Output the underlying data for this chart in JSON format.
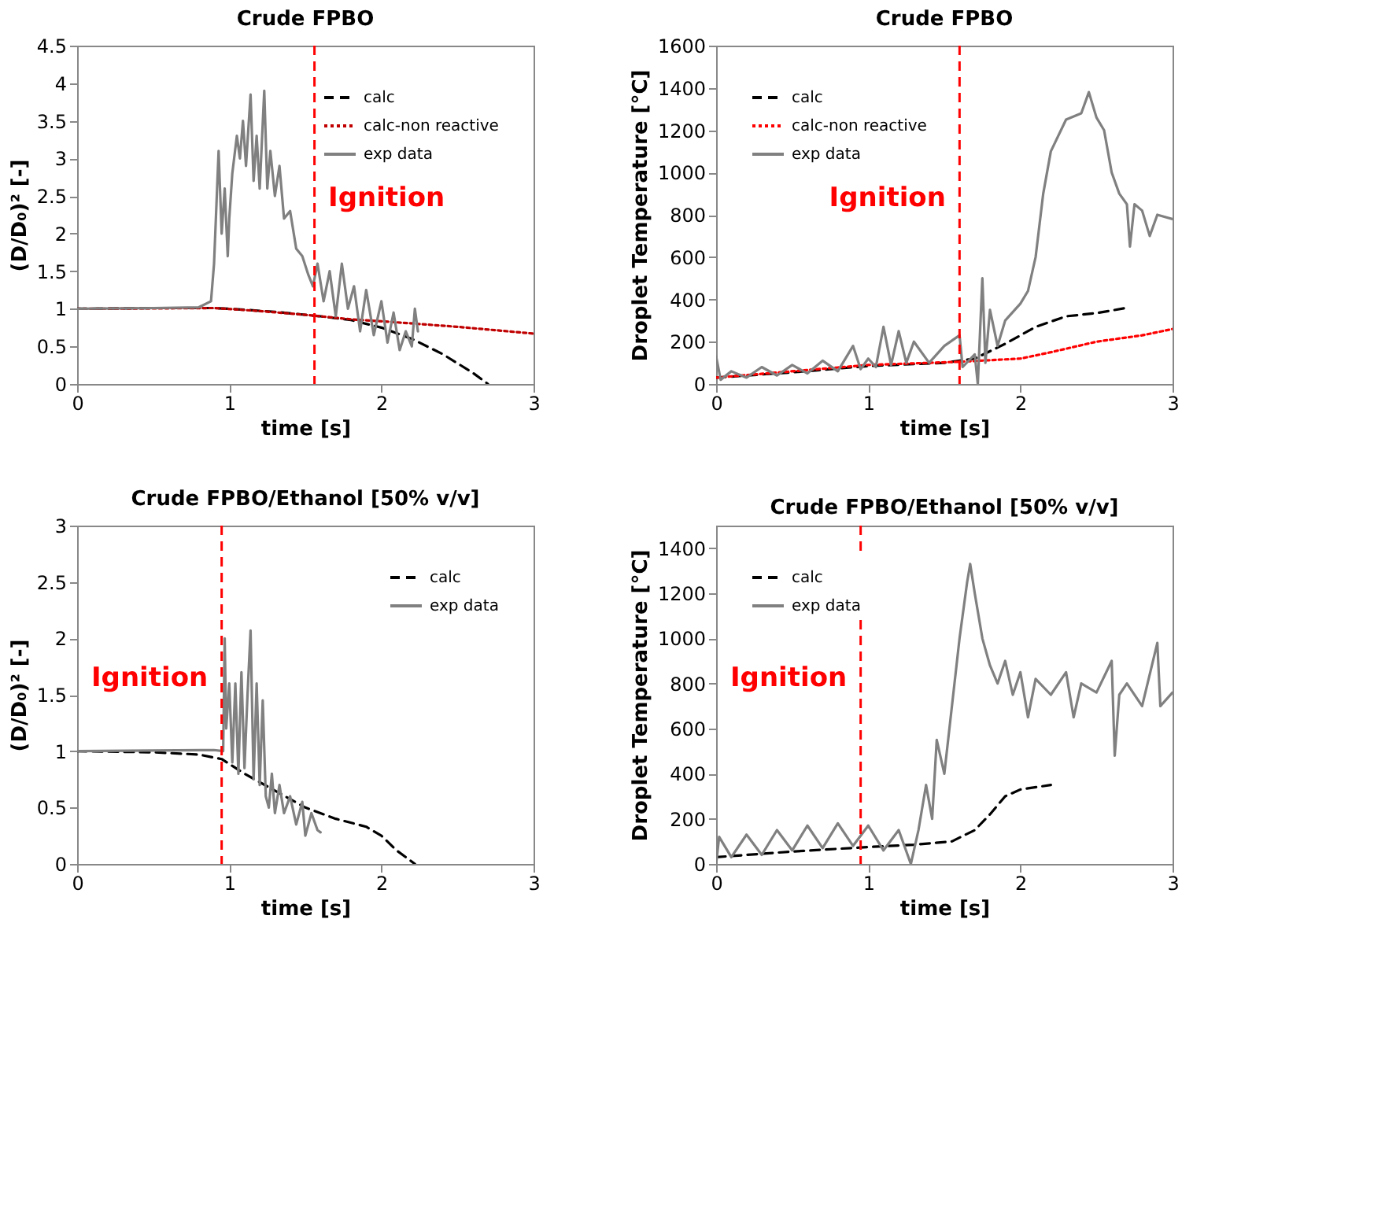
{
  "chart_data": [
    {
      "type": "line",
      "title": "Crude FPBO",
      "xlabel": "time [s]",
      "ylabel": "(D/D₀)² [-]",
      "xlim": [
        0,
        3
      ],
      "xticks": [
        0,
        1,
        2,
        3
      ],
      "ylim": [
        0,
        4.5
      ],
      "yticks": [
        0,
        0.5,
        1,
        1.5,
        2,
        2.5,
        3,
        3.5,
        4,
        4.5
      ],
      "grid": false,
      "legend": "top right",
      "marker": "none",
      "series": [
        {
          "name": "calc",
          "color": "#000000",
          "line_style": "dashed",
          "x": [
            0,
            0.5,
            0.9,
            1.0,
            1.3,
            1.6,
            1.8,
            2.0,
            2.2,
            2.4,
            2.6,
            2.7
          ],
          "values": [
            1.0,
            1.01,
            1.01,
            1.0,
            0.96,
            0.9,
            0.85,
            0.75,
            0.6,
            0.4,
            0.15,
            0
          ]
        },
        {
          "name": "calc-non reactive",
          "color": "#c00000",
          "line_style": "dotted",
          "x": [
            0,
            0.9,
            1.2,
            1.5,
            1.8,
            2.1,
            2.5,
            3.0
          ],
          "values": [
            1.0,
            1.01,
            0.97,
            0.92,
            0.86,
            0.82,
            0.76,
            0.67
          ]
        },
        {
          "name": "exp data",
          "color": "#808080",
          "line_style": "solid",
          "x": [
            0,
            0.5,
            0.8,
            0.88,
            0.9,
            0.93,
            0.95,
            0.97,
            0.99,
            1.0,
            1.02,
            1.05,
            1.07,
            1.09,
            1.11,
            1.14,
            1.16,
            1.18,
            1.2,
            1.23,
            1.25,
            1.27,
            1.3,
            1.33,
            1.36,
            1.4,
            1.44,
            1.48,
            1.52,
            1.55,
            1.58,
            1.62,
            1.66,
            1.7,
            1.74,
            1.78,
            1.82,
            1.86,
            1.9,
            1.95,
            2.0,
            2.04,
            2.08,
            2.12,
            2.16,
            2.2,
            2.22,
            2.24
          ],
          "values": [
            1.0,
            1.01,
            1.02,
            1.1,
            1.6,
            3.1,
            2.0,
            2.6,
            1.7,
            2.2,
            2.8,
            3.3,
            3.0,
            3.5,
            2.9,
            3.85,
            2.7,
            3.3,
            2.6,
            3.9,
            2.6,
            3.1,
            2.5,
            2.9,
            2.2,
            2.3,
            1.8,
            1.7,
            1.45,
            1.3,
            1.6,
            1.1,
            1.5,
            0.9,
            1.6,
            1.0,
            1.3,
            0.7,
            1.25,
            0.65,
            1.1,
            0.55,
            0.95,
            0.45,
            0.7,
            0.5,
            1.0,
            0.7
          ]
        }
      ],
      "ref_lines": [
        {
          "axis": "x",
          "value": 1.56,
          "color": "#ff0000",
          "line_style": "dashed",
          "label": "Ignition"
        }
      ]
    },
    {
      "type": "line",
      "title": "Crude FPBO",
      "xlabel": "time [s]",
      "ylabel": "Droplet Temperature  [°C]",
      "xlim": [
        0,
        3
      ],
      "xticks": [
        0,
        1,
        2,
        3
      ],
      "ylim": [
        0,
        1600
      ],
      "yticks": [
        0,
        200,
        400,
        600,
        800,
        1000,
        1200,
        1400,
        1600
      ],
      "grid": false,
      "legend": "top left",
      "marker": "none",
      "series": [
        {
          "name": "calc",
          "color": "#000000",
          "line_style": "dashed",
          "x": [
            0,
            0.5,
            1.0,
            1.5,
            1.7,
            1.9,
            2.1,
            2.3,
            2.5,
            2.7
          ],
          "values": [
            30,
            55,
            85,
            100,
            120,
            190,
            270,
            320,
            335,
            360
          ]
        },
        {
          "name": "calc-non reactive",
          "color": "#ff0000",
          "line_style": "dotted",
          "x": [
            0,
            1.0,
            1.6,
            2.0,
            2.2,
            2.5,
            2.8,
            3.0
          ],
          "values": [
            30,
            90,
            105,
            120,
            150,
            200,
            230,
            260
          ]
        },
        {
          "name": "exp data",
          "color": "#808080",
          "line_style": "solid",
          "x": [
            0,
            0.03,
            0.1,
            0.2,
            0.3,
            0.4,
            0.5,
            0.6,
            0.7,
            0.8,
            0.9,
            0.95,
            1.0,
            1.05,
            1.1,
            1.15,
            1.2,
            1.25,
            1.3,
            1.4,
            1.5,
            1.6,
            1.62,
            1.7,
            1.72,
            1.75,
            1.77,
            1.8,
            1.85,
            1.9,
            2.0,
            2.05,
            2.1,
            2.15,
            2.2,
            2.3,
            2.4,
            2.45,
            2.5,
            2.55,
            2.6,
            2.65,
            2.7,
            2.72,
            2.75,
            2.8,
            2.85,
            2.9,
            3.0
          ],
          "values": [
            130,
            20,
            60,
            30,
            80,
            40,
            90,
            50,
            110,
            60,
            180,
            70,
            120,
            80,
            270,
            90,
            250,
            100,
            200,
            100,
            180,
            230,
            80,
            140,
            0,
            500,
            100,
            350,
            180,
            300,
            380,
            440,
            600,
            900,
            1100,
            1250,
            1280,
            1380,
            1260,
            1200,
            1000,
            900,
            850,
            650,
            850,
            820,
            700,
            800,
            780
          ]
        }
      ],
      "ref_lines": [
        {
          "axis": "x",
          "value": 1.6,
          "color": "#ff0000",
          "line_style": "dashed",
          "label": "Ignition"
        }
      ]
    },
    {
      "type": "line",
      "title": "Crude FPBO/Ethanol  [50% v/v]",
      "xlabel": "time [s]",
      "ylabel": "(D/D₀)² [-]",
      "xlim": [
        0,
        3
      ],
      "xticks": [
        0,
        1,
        2,
        3
      ],
      "ylim": [
        0,
        3
      ],
      "yticks": [
        0,
        0.5,
        1,
        1.5,
        2,
        2.5,
        3
      ],
      "grid": false,
      "legend": "top right",
      "marker": "none",
      "series": [
        {
          "name": "calc",
          "color": "#000000",
          "line_style": "dashed",
          "x": [
            0,
            0.5,
            0.8,
            0.95,
            1.1,
            1.3,
            1.5,
            1.7,
            1.9,
            2.0,
            2.1,
            2.22
          ],
          "values": [
            1.0,
            0.99,
            0.97,
            0.93,
            0.8,
            0.65,
            0.5,
            0.4,
            0.33,
            0.25,
            0.12,
            0
          ]
        },
        {
          "name": "exp data",
          "color": "#808080",
          "line_style": "solid",
          "x": [
            0,
            0.9,
            0.96,
            0.97,
            0.98,
            1.0,
            1.02,
            1.04,
            1.06,
            1.08,
            1.1,
            1.12,
            1.14,
            1.16,
            1.18,
            1.2,
            1.22,
            1.24,
            1.26,
            1.28,
            1.3,
            1.33,
            1.36,
            1.4,
            1.44,
            1.48,
            1.5,
            1.54,
            1.58,
            1.6
          ],
          "values": [
            1.0,
            1.01,
            1.0,
            2.0,
            1.2,
            1.6,
            0.9,
            1.6,
            0.8,
            1.7,
            0.85,
            1.5,
            2.07,
            0.75,
            1.6,
            0.7,
            1.45,
            0.6,
            0.5,
            0.8,
            0.45,
            0.7,
            0.45,
            0.6,
            0.35,
            0.55,
            0.25,
            0.45,
            0.3,
            0.28
          ]
        }
      ],
      "ref_lines": [
        {
          "axis": "x",
          "value": 0.95,
          "color": "#ff0000",
          "line_style": "dashed",
          "label": "Ignition"
        }
      ]
    },
    {
      "type": "line",
      "title": "Crude FPBO/Ethanol  [50% v/v]",
      "xlabel": "time [s]",
      "ylabel": "Droplet Temperature [°C]",
      "xlim": [
        0,
        3
      ],
      "xticks": [
        0,
        1,
        2,
        3
      ],
      "ylim": [
        0,
        1500
      ],
      "yticks": [
        0,
        200,
        400,
        600,
        800,
        1000,
        1200,
        1400
      ],
      "grid": false,
      "legend": "top left",
      "marker": "none",
      "series": [
        {
          "name": "calc",
          "color": "#000000",
          "line_style": "dashed",
          "x": [
            0,
            0.5,
            1.0,
            1.3,
            1.55,
            1.7,
            1.8,
            1.9,
            2.0,
            2.2
          ],
          "values": [
            30,
            55,
            75,
            85,
            100,
            150,
            220,
            300,
            330,
            350
          ]
        },
        {
          "name": "exp data",
          "color": "#808080",
          "line_style": "solid",
          "x": [
            0,
            0.02,
            0.1,
            0.2,
            0.3,
            0.4,
            0.5,
            0.6,
            0.7,
            0.8,
            0.9,
            1.0,
            1.1,
            1.2,
            1.28,
            1.33,
            1.38,
            1.42,
            1.45,
            1.5,
            1.55,
            1.6,
            1.65,
            1.67,
            1.7,
            1.75,
            1.8,
            1.85,
            1.9,
            1.95,
            2.0,
            2.05,
            2.1,
            2.2,
            2.3,
            2.35,
            2.4,
            2.5,
            2.6,
            2.62,
            2.65,
            2.7,
            2.8,
            2.9,
            2.92,
            3.0
          ],
          "values": [
            0,
            120,
            30,
            130,
            40,
            150,
            60,
            170,
            70,
            180,
            80,
            170,
            60,
            150,
            0,
            150,
            350,
            200,
            550,
            400,
            700,
            1000,
            1250,
            1330,
            1200,
            1000,
            880,
            800,
            900,
            750,
            850,
            650,
            820,
            750,
            850,
            650,
            800,
            760,
            900,
            480,
            750,
            800,
            700,
            980,
            700,
            760
          ]
        }
      ],
      "ref_lines": [
        {
          "axis": "x",
          "value": 0.95,
          "color": "#ff0000",
          "line_style": "dashed",
          "label": "Ignition"
        }
      ]
    }
  ]
}
